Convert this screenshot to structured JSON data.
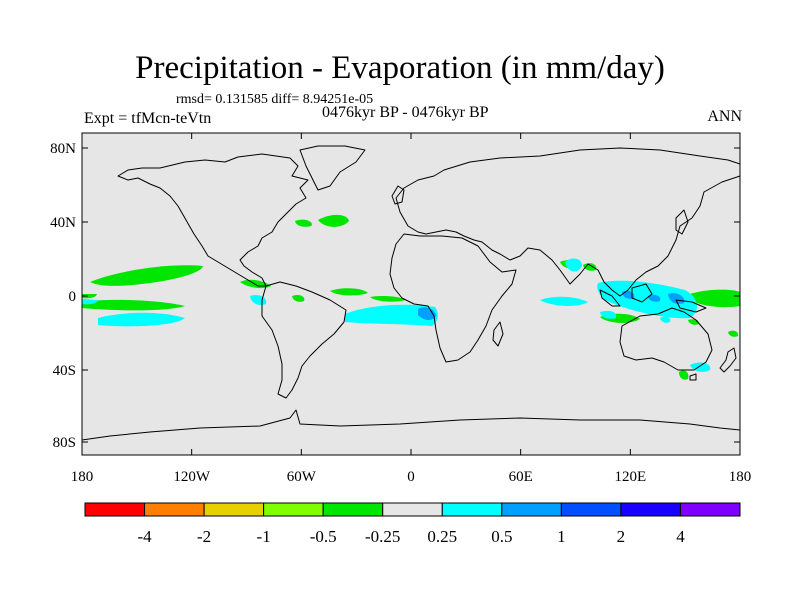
{
  "title": "Precipitation - Evaporation (in mm/day)",
  "stats": "rmsd= 0.131585 diff= 8.94251e-05",
  "expt": "Expt = tfMcn-teVtn",
  "period": "0476kyr BP - 0476kyr BP",
  "season": "ANN",
  "map": {
    "ocean_color": "#e6e6e6",
    "lat_ticks": [
      "80N",
      "40N",
      "0",
      "40S",
      "80S"
    ],
    "lon_ticks": [
      "180",
      "120W",
      "60W",
      "0",
      "60E",
      "120E",
      "180"
    ]
  },
  "colorbar": {
    "colors": [
      "#ff0000",
      "#ff8000",
      "#e6d000",
      "#80ff00",
      "#00e600",
      "#e6e6e6",
      "#00ffff",
      "#00a0ff",
      "#0050ff",
      "#1a00ff",
      "#8000ff"
    ],
    "labels": [
      "-4",
      "-2",
      "-1",
      "-0.5",
      "-0.25",
      "0.25",
      "0.5",
      "1",
      "2",
      "4"
    ]
  }
}
